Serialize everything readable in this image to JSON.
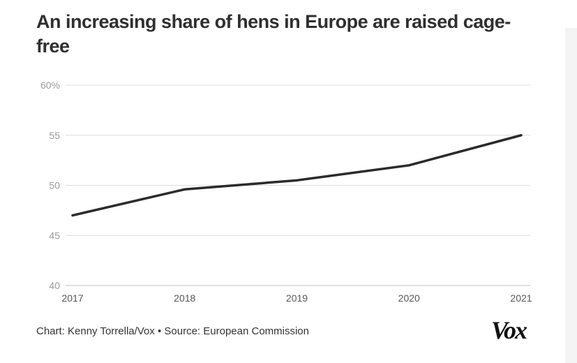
{
  "header": {
    "title": "An increasing share of hens in Europe are raised cage-free"
  },
  "footer": {
    "credit": "Chart: Kenny Torrella/Vox • Source: European Commission",
    "logo": "Vox"
  },
  "colors": {
    "line": "#2b2b2b",
    "grid": "#dcdcdc",
    "tick_label": "#9a9a9a",
    "x_tick_label": "#555555"
  },
  "chart_data": {
    "type": "line",
    "title": "An increasing share of hens in Europe are raised cage-free",
    "xlabel": "",
    "ylabel": "",
    "x": [
      2017,
      2018,
      2019,
      2020,
      2021
    ],
    "x_tick_labels": [
      "2017",
      "2018",
      "2019",
      "2020",
      "2021"
    ],
    "series": [
      {
        "values": [
          47.0,
          49.6,
          50.5,
          52.0,
          55.0
        ]
      }
    ],
    "ylim": [
      40,
      60
    ],
    "y_ticks": [
      40,
      45,
      50,
      55,
      60
    ],
    "y_tick_labels": [
      "40",
      "45",
      "50",
      "55",
      "60%"
    ],
    "grid": true
  }
}
